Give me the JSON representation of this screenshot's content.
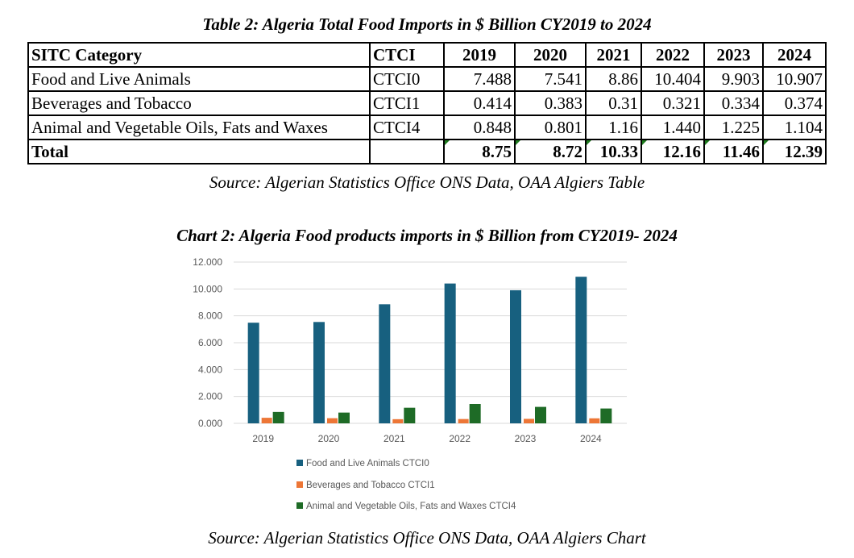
{
  "table": {
    "title": "Table 2: Algeria Total Food Imports in $ Billion CY2019 to 2024",
    "headers": [
      "SITC Category",
      "CTCI",
      "2019",
      "2020",
      "2021",
      "2022",
      "2023",
      "2024"
    ],
    "rows": [
      {
        "category": "Food and Live Animals",
        "code": "CTCI0",
        "values": [
          "7.488",
          "7.541",
          "8.86",
          "10.404",
          "9.903",
          "10.907"
        ]
      },
      {
        "category": "Beverages and Tobacco",
        "code": "CTCI1",
        "values": [
          "0.414",
          "0.383",
          "0.31",
          "0.321",
          "0.334",
          "0.374"
        ]
      },
      {
        "category": "Animal and Vegetable Oils, Fats and Waxes",
        "code": "CTCI4",
        "values": [
          "0.848",
          "0.801",
          "1.16",
          "1.440",
          "1.225",
          "1.104"
        ]
      }
    ],
    "total": {
      "label": "Total",
      "code": "",
      "values": [
        "8.75",
        "8.72",
        "10.33",
        "12.16",
        "11.46",
        "12.39"
      ]
    },
    "source": "Source: Algerian Statistics Office ONS Data, OAA Algiers Table"
  },
  "chart_data": {
    "type": "bar",
    "title": "Chart 2: Algeria Food products imports in $ Billion from CY2019- 2024",
    "xlabel": "",
    "ylabel": "",
    "categories": [
      "2019",
      "2020",
      "2021",
      "2022",
      "2023",
      "2024"
    ],
    "series": [
      {
        "name": "Food and Live Animals CTCI0",
        "color": "#17607f",
        "values": [
          7.488,
          7.541,
          8.86,
          10.404,
          9.903,
          10.907
        ]
      },
      {
        "name": "Beverages and Tobacco CTCI1",
        "color": "#ed7636",
        "values": [
          0.414,
          0.383,
          0.31,
          0.321,
          0.334,
          0.374
        ]
      },
      {
        "name": "Animal and Vegetable Oils, Fats and Waxes CTCI4",
        "color": "#1e6b26",
        "values": [
          0.848,
          0.801,
          1.16,
          1.44,
          1.225,
          1.104
        ]
      }
    ],
    "ylim": [
      0,
      12
    ],
    "yticks": [
      "0.000",
      "2.000",
      "4.000",
      "6.000",
      "8.000",
      "10.000",
      "12.000"
    ],
    "ytick_values": [
      0,
      2,
      4,
      6,
      8,
      10,
      12
    ],
    "grid": true,
    "legend_position": "bottom"
  },
  "chart_source": "Source: Algerian Statistics Office ONS Data, OAA Algiers Chart",
  "colors": {
    "gridline": "#d9d9d9",
    "axis_text": "#595959",
    "total_flag": "#1e7b1e"
  }
}
